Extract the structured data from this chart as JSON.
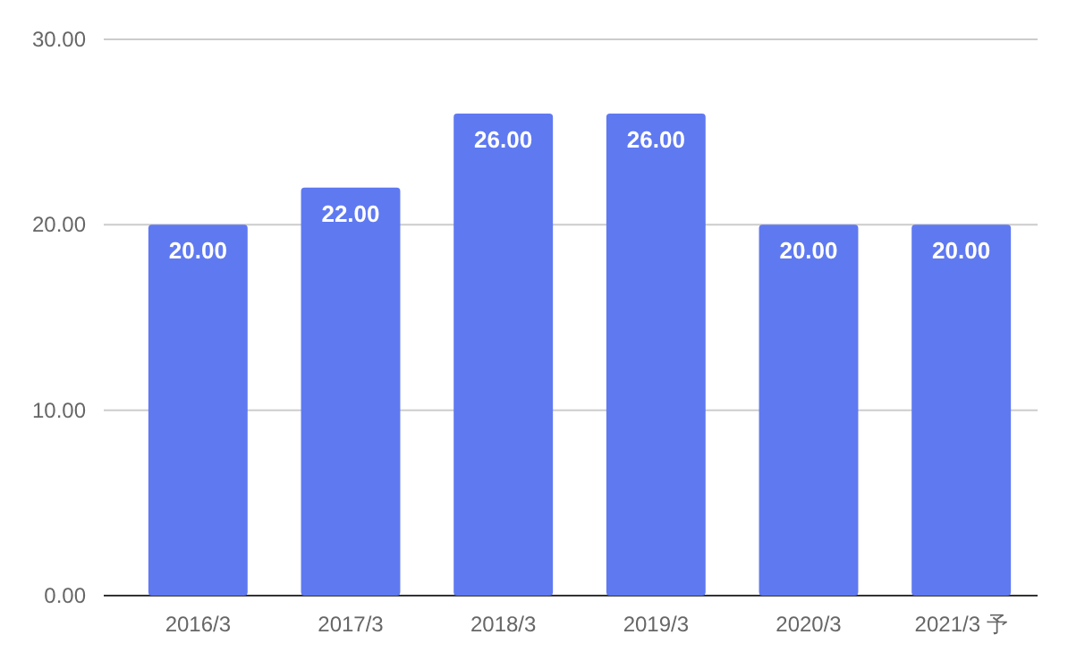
{
  "chart_data": {
    "type": "bar",
    "categories": [
      "2016/3",
      "2017/3",
      "2018/3",
      "2019/3",
      "2020/3",
      "2021/3 予"
    ],
    "values": [
      20,
      22,
      26,
      26,
      20,
      20
    ],
    "value_labels": [
      "20.00",
      "22.00",
      "26.00",
      "26.00",
      "20.00",
      "20.00"
    ],
    "color": "#5f79f1",
    "ylim": [
      0,
      30
    ],
    "yticks": [
      {
        "value": 0,
        "label": "0.00"
      },
      {
        "value": 10,
        "label": "10.00"
      },
      {
        "value": 20,
        "label": "20.00"
      },
      {
        "value": 30,
        "label": "30.00"
      }
    ],
    "grid": "y"
  }
}
